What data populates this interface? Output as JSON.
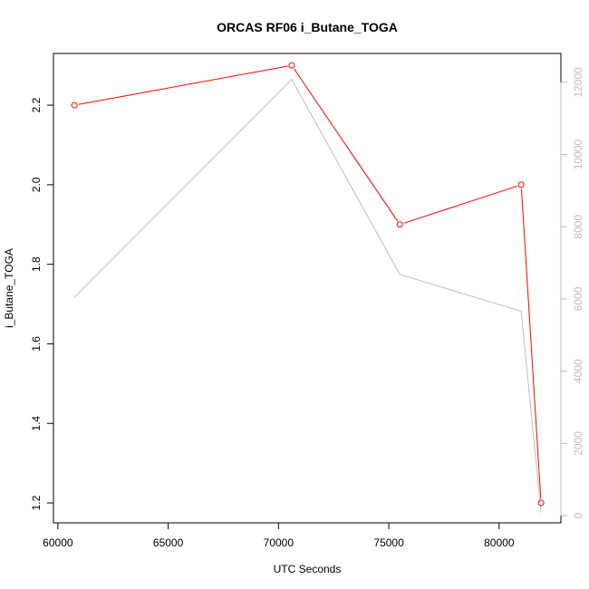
{
  "chart_data": {
    "type": "line",
    "title": "ORCAS RF06 i_Butane_TOGA",
    "xlabel": "UTC Seconds",
    "ylabel": "i_Butane_TOGA",
    "xlim": [
      59800,
      82800
    ],
    "ylim": [
      1.15,
      2.33
    ],
    "y2lim": [
      -200,
      12800
    ],
    "xticks": [
      60000,
      65000,
      70000,
      75000,
      80000
    ],
    "yticks": [
      1.2,
      1.4,
      1.6,
      1.8,
      2.0,
      2.2
    ],
    "y2ticks": [
      0,
      2000,
      4000,
      6000,
      8000,
      10000,
      12000
    ],
    "xtick_labels": [
      "60000",
      "65000",
      "70000",
      "75000",
      "80000"
    ],
    "ytick_labels": [
      "1.2",
      "1.4",
      "1.6",
      "1.8",
      "2.0",
      "2.2"
    ],
    "y2tick_labels": [
      "0",
      "2000",
      "4000",
      "6000",
      "8000",
      "10000",
      "12000"
    ],
    "grid": false,
    "series": [
      {
        "color": "#ff0000",
        "axis": "left",
        "markers": "open-circle",
        "x": [
          60750,
          70600,
          75500,
          81000,
          81900
        ],
        "y": [
          2.2,
          2.3,
          1.9,
          2.0,
          1.2
        ]
      },
      {
        "color": "#bebebe",
        "axis": "right",
        "markers": "none",
        "x": [
          60750,
          70600,
          75500,
          81000,
          81900
        ],
        "y": [
          6050,
          12080,
          6680,
          5660,
          80
        ]
      }
    ]
  }
}
